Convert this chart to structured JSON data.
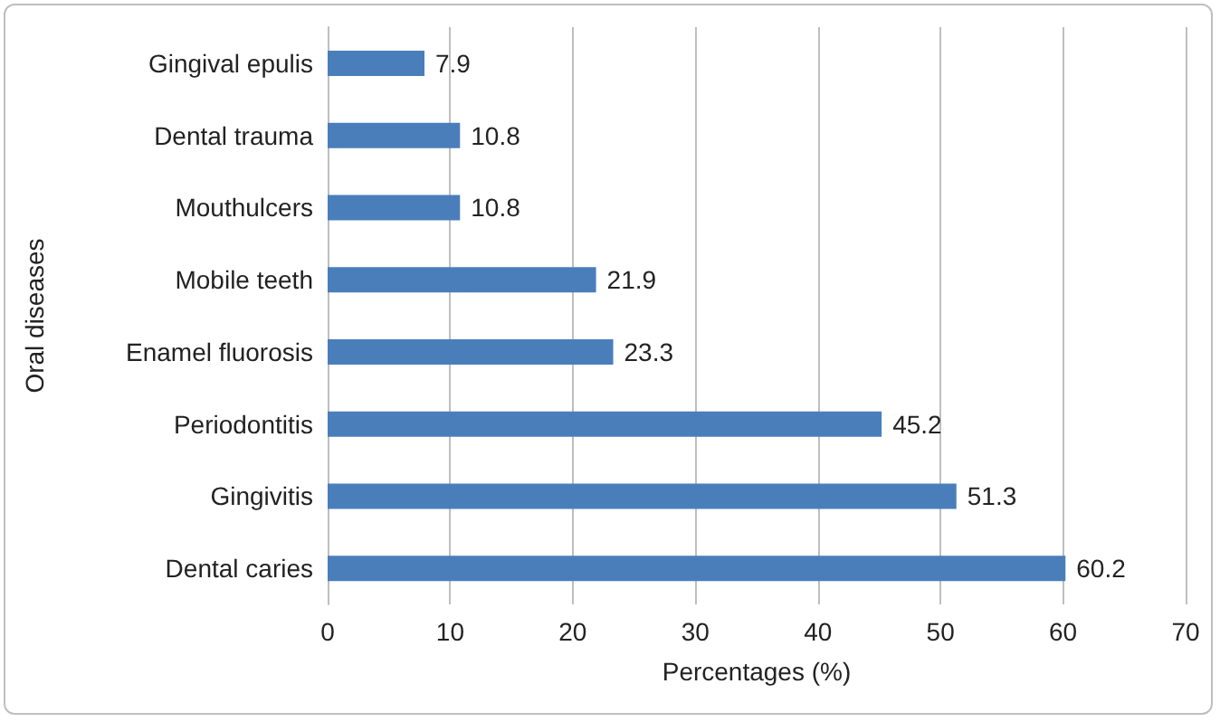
{
  "chart_data": {
    "type": "bar",
    "orientation": "horizontal",
    "xlabel": "Percentages (%)",
    "ylabel": "Oral diseases",
    "categories": [
      "Gingival epulis",
      "Dental trauma",
      "Mouthulcers",
      "Mobile teeth",
      "Enamel fluorosis",
      "Periodontitis",
      "Gingivitis",
      "Dental caries"
    ],
    "values": [
      7.9,
      10.8,
      10.8,
      21.9,
      23.3,
      45.2,
      51.3,
      60.2
    ],
    "color": "#4a7ebb",
    "xlim": [
      0,
      70
    ],
    "xticks": [
      0,
      10,
      20,
      30,
      40,
      50,
      60,
      70
    ],
    "grid": "x",
    "data_labels": true
  }
}
